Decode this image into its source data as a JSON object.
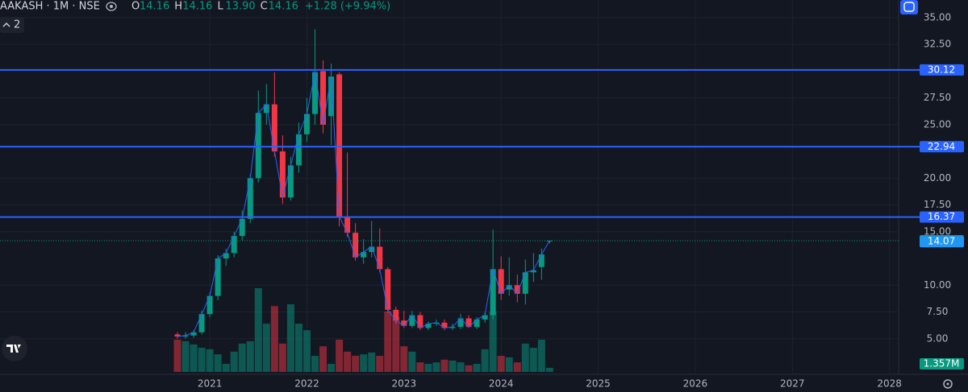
{
  "header": {
    "symbol": "AAKASH · 1M · NSE",
    "ohlc": [
      {
        "key": "O",
        "value": "14.16"
      },
      {
        "key": "H",
        "value": "14.16"
      },
      {
        "key": "L",
        "value": "13.90"
      },
      {
        "key": "C",
        "value": "14.16"
      }
    ],
    "change": "+1.28 (+9.94%)",
    "indicators": "2"
  },
  "chart_data": {
    "type": "candlestick",
    "open": [
      5.4,
      5.2,
      5.3,
      5.6,
      7.3,
      9.0,
      12.5,
      13.0,
      14.6,
      16.2,
      20.0,
      26.1,
      26.9,
      22.5,
      18.2,
      21.2,
      24.1,
      26.0,
      30.0,
      25.8,
      29.7,
      16.4,
      14.9,
      12.6,
      13.1,
      13.6,
      11.5,
      7.7,
      6.7,
      6.2,
      7.2,
      6.0,
      6.4,
      6.5,
      6.0,
      6.1,
      6.9,
      6.1,
      6.8,
      7.2,
      11.5,
      9.6,
      10.0,
      9.2,
      11.2,
      11.7,
      14.16
    ],
    "high": [
      5.6,
      5.6,
      5.8,
      7.6,
      9.3,
      12.8,
      13.4,
      15.0,
      17.0,
      20.4,
      28.2,
      28.8,
      29.9,
      24.0,
      22.0,
      25.2,
      27.5,
      33.9,
      31.0,
      30.7,
      29.9,
      22.4,
      15.8,
      14.3,
      16.0,
      15.3,
      11.7,
      8.0,
      7.6,
      7.6,
      7.5,
      6.6,
      6.8,
      6.8,
      6.4,
      7.3,
      7.2,
      7.0,
      7.5,
      15.2,
      12.7,
      12.6,
      11.0,
      12.4,
      13.0,
      13.4,
      14.16
    ],
    "low": [
      5.0,
      5.0,
      5.1,
      5.4,
      7.0,
      8.6,
      11.8,
      12.6,
      14.2,
      15.8,
      19.6,
      25.0,
      22.0,
      17.6,
      17.9,
      20.5,
      23.4,
      25.0,
      24.2,
      23.1,
      15.5,
      14.5,
      12.3,
      12.0,
      12.6,
      11.2,
      7.4,
      6.4,
      6.0,
      6.0,
      5.8,
      5.8,
      6.2,
      5.8,
      5.8,
      5.9,
      6.0,
      5.9,
      6.5,
      6.8,
      8.6,
      9.0,
      8.4,
      8.2,
      10.3,
      10.5,
      13.9
    ],
    "close": [
      5.2,
      5.3,
      5.6,
      7.3,
      9.0,
      12.5,
      13.0,
      14.6,
      16.2,
      20.0,
      26.1,
      26.9,
      22.5,
      18.2,
      21.2,
      24.1,
      26.0,
      29.9,
      25.0,
      29.5,
      16.4,
      14.9,
      12.6,
      13.1,
      13.6,
      11.5,
      7.7,
      6.7,
      6.2,
      7.2,
      6.0,
      6.4,
      6.5,
      6.0,
      6.1,
      6.9,
      6.1,
      6.8,
      7.2,
      11.5,
      9.2,
      10.0,
      9.2,
      11.2,
      11.4,
      12.88,
      14.16
    ],
    "volume": [
      10.8,
      10.3,
      9.2,
      8.1,
      7.6,
      5.9,
      2.7,
      6.8,
      9.5,
      10.3,
      28.1,
      16.2,
      22.1,
      9.5,
      22.7,
      16.2,
      14.0,
      5.4,
      8.6,
      2.7,
      10.8,
      6.8,
      5.4,
      5.9,
      6.5,
      5.4,
      20.3,
      18.4,
      8.6,
      6.8,
      3.2,
      2.7,
      3.2,
      4.1,
      3.8,
      3.2,
      2.2,
      2.7,
      7.6,
      20.3,
      5.4,
      4.9,
      3.2,
      9.5,
      8.1,
      10.8,
      1.357
    ],
    "volume_value_labels": [
      null,
      null,
      null,
      null,
      null,
      null,
      null,
      null,
      null,
      null,
      null,
      null,
      null,
      null,
      null,
      null,
      null,
      null,
      null,
      null,
      null,
      null,
      null,
      null,
      null,
      null,
      null,
      null,
      null,
      null,
      null,
      null,
      null,
      null,
      null,
      null,
      null,
      null,
      null,
      null,
      null,
      null,
      null,
      null,
      null,
      null,
      "1.357M"
    ],
    "up_color": "#089981",
    "down_color": "#f23645",
    "levels": [
      30.12,
      22.94,
      16.37
    ],
    "level_color": "#2962ff",
    "indicator_value": 14.07,
    "ylim": [
      1.9,
      36.65
    ],
    "yticks": [
      {
        "value": 5,
        "label": "5.00"
      },
      {
        "value": 7.5,
        "label": "7.50"
      },
      {
        "value": 10,
        "label": "10.00"
      },
      {
        "value": 15,
        "label": "15.00"
      },
      {
        "value": 17.5,
        "label": "17.50"
      },
      {
        "value": 20,
        "label": "20.00"
      },
      {
        "value": 25,
        "label": "25.00"
      },
      {
        "value": 27.5,
        "label": "27.50"
      },
      {
        "value": 32.5,
        "label": "32.50"
      },
      {
        "value": 35,
        "label": "35.00"
      }
    ],
    "xlim": [
      -21.93,
      88.93
    ],
    "xticks": [
      {
        "value": 4,
        "label": "2021"
      },
      {
        "value": 16,
        "label": "2022"
      },
      {
        "value": 28,
        "label": "2023"
      },
      {
        "value": 40,
        "label": "2024"
      },
      {
        "value": 52,
        "label": "2025"
      },
      {
        "value": 64,
        "label": "2026"
      },
      {
        "value": 76,
        "label": "2027"
      },
      {
        "value": 88,
        "label": "2028"
      }
    ],
    "grid": true
  }
}
